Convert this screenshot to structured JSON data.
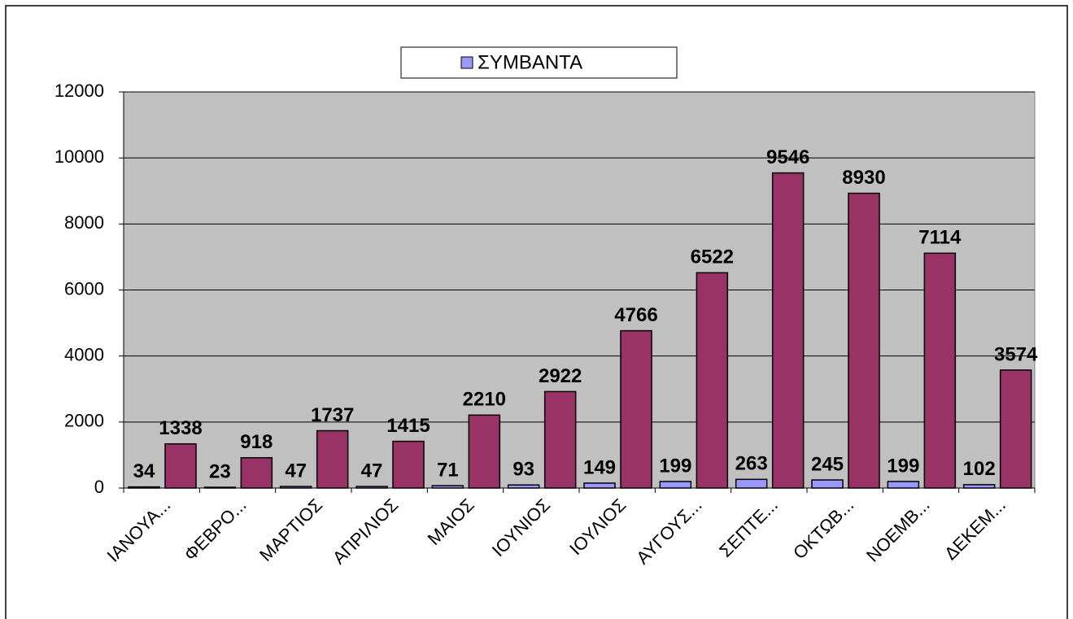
{
  "chart_data": {
    "type": "bar",
    "categories": [
      "ΙΑΝΟΥΑ...",
      "ΦΕΒΡΟ...",
      "ΜΑΡΤΙΟΣ",
      "ΑΠΡΙΛΙΟΣ",
      "ΜΑΙΟΣ",
      "ΙΟΥΝΙΟΣ",
      "ΙΟΥΛΙΟΣ",
      "ΑΥΓΟΥΣ...",
      "ΣΕΠΤΕ...",
      "ΟΚΤΩΒ...",
      "ΝΟΕΜΒ...",
      "ΔΕΚΕΜ..."
    ],
    "series": [
      {
        "name": "ΣΥΜΒΑΝΤΑ",
        "color": "#9999ff",
        "values": [
          34,
          23,
          47,
          47,
          71,
          93,
          149,
          199,
          263,
          245,
          199,
          102
        ]
      },
      {
        "color": "#993366",
        "values": [
          1338,
          918,
          1737,
          1415,
          2210,
          2922,
          4766,
          6522,
          9546,
          8930,
          7114,
          3574
        ]
      }
    ],
    "ylim": [
      0,
      12000
    ],
    "yticks": [
      0,
      2000,
      4000,
      6000,
      8000,
      10000,
      12000
    ],
    "grid": true,
    "legend": "top"
  }
}
